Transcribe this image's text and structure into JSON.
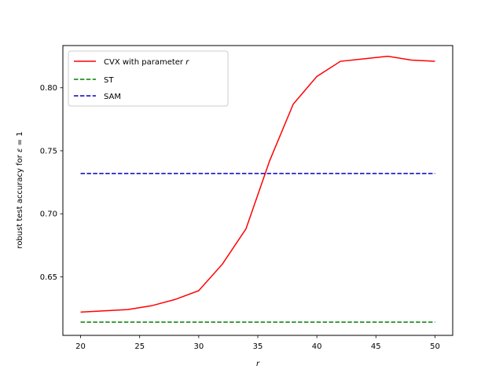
{
  "chart_data": {
    "type": "line",
    "xlabel": "r",
    "ylabel_prefix": "robust test accuracy for ",
    "ylabel_symbol": "ε",
    "ylabel_suffix": " = 1",
    "xlim": [
      18.5,
      51.5
    ],
    "ylim": [
      0.6035,
      0.8335
    ],
    "xticks": [
      20,
      25,
      30,
      35,
      40,
      45,
      50
    ],
    "yticks": [
      0.65,
      0.7,
      0.75,
      0.8
    ],
    "ytick_labels": [
      "0.65",
      "0.70",
      "0.75",
      "0.80"
    ],
    "grid": false,
    "legend_position": "top-left",
    "series": [
      {
        "name_prefix": "CVX with parameter ",
        "name_symbol": "r",
        "color": "#ff0000",
        "dash": "solid",
        "x": [
          20,
          22,
          24,
          26,
          28,
          30,
          32,
          34,
          36,
          38,
          40,
          42,
          44,
          46,
          48,
          50
        ],
        "y": [
          0.622,
          0.623,
          0.624,
          0.627,
          0.632,
          0.639,
          0.66,
          0.688,
          0.742,
          0.787,
          0.809,
          0.821,
          0.823,
          0.825,
          0.822,
          0.821
        ]
      },
      {
        "name": "ST",
        "color": "#008000",
        "dash": "dashed",
        "x": [
          20,
          50
        ],
        "y": [
          0.614,
          0.614
        ]
      },
      {
        "name": "SAM",
        "color": "#0000bf",
        "dash": "dashed",
        "x": [
          20,
          50
        ],
        "y": [
          0.732,
          0.732
        ]
      }
    ]
  }
}
